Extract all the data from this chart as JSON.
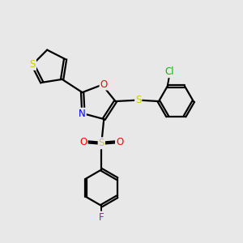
{
  "bg_color": "#e8e8e8",
  "bond_color": "#000000",
  "sulfur_color": "#cccc00",
  "nitrogen_color": "#0000ff",
  "oxygen_color": "#ff0000",
  "chlorine_color": "#00bb00",
  "fluorine_color": "#cc00cc",
  "line_width": 1.6,
  "dbo": 0.055,
  "xlim": [
    0,
    10
  ],
  "ylim": [
    0,
    10
  ]
}
